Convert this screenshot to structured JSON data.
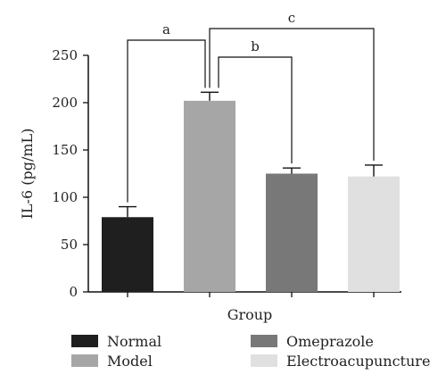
{
  "chart_data": {
    "type": "bar",
    "title": "",
    "xlabel": "Group",
    "ylabel": "IL-6 (pg/mL)",
    "ylim": [
      0,
      250
    ],
    "yticks": [
      0,
      50,
      100,
      150,
      200,
      250
    ],
    "grid": false,
    "legend_placement": "bottom",
    "categories": [
      "Normal",
      "Model",
      "Omeprazole",
      "Electroacupuncture"
    ],
    "values": [
      79,
      202,
      125,
      122
    ],
    "errors": [
      11,
      9,
      6,
      12
    ],
    "colors": [
      "#1f1f1f",
      "#a6a6a6",
      "#787878",
      "#e0e0e0"
    ],
    "significance": [
      {
        "label": "a",
        "from": "Normal",
        "to": "Model"
      },
      {
        "label": "b",
        "from": "Model",
        "to": "Omeprazole"
      },
      {
        "label": "c",
        "from": "Model",
        "to": "Electroacupuncture"
      }
    ]
  }
}
